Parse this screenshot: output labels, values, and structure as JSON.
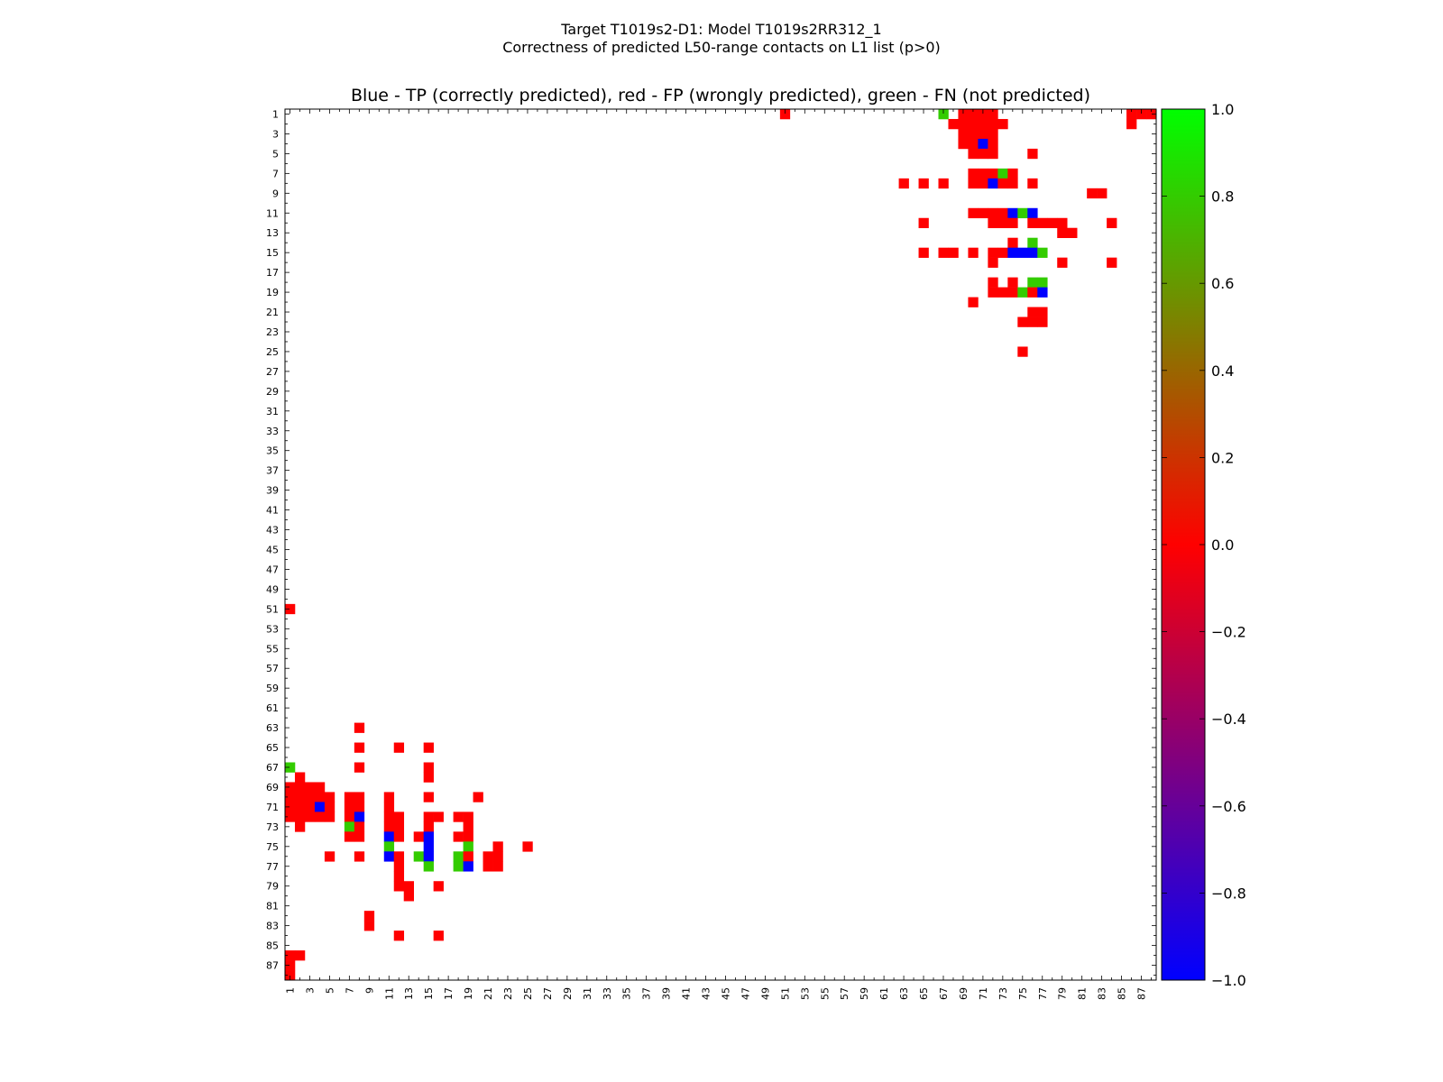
{
  "figure": {
    "suptitle_line1": "Target T1019s2-D1: Model T1019s2RR312_1",
    "suptitle_line2": "Correctness of predicted L50-range contacts on L1 list (p>0)"
  },
  "chart_data": {
    "type": "heatmap",
    "title": "Blue - TP (correctly predicted), red - FP (wrongly predicted), green - FN (not predicted)",
    "xlabel": "",
    "ylabel": "",
    "n_residues": 88,
    "x_ticks": [
      1,
      3,
      5,
      7,
      9,
      11,
      13,
      15,
      17,
      19,
      21,
      23,
      25,
      27,
      29,
      31,
      33,
      35,
      37,
      39,
      41,
      43,
      45,
      47,
      49,
      51,
      53,
      55,
      57,
      59,
      61,
      63,
      65,
      67,
      69,
      71,
      73,
      75,
      77,
      79,
      81,
      83,
      85,
      87
    ],
    "y_ticks": [
      1,
      3,
      5,
      7,
      9,
      11,
      13,
      15,
      17,
      19,
      21,
      23,
      25,
      27,
      29,
      31,
      33,
      35,
      37,
      39,
      41,
      43,
      45,
      47,
      49,
      51,
      53,
      55,
      57,
      59,
      61,
      63,
      65,
      67,
      69,
      71,
      73,
      75,
      77,
      79,
      81,
      83,
      85,
      87
    ],
    "colorbar": {
      "range": [
        -1.0,
        1.0
      ],
      "tick_labels": [
        "1.0",
        "0.8",
        "0.6",
        "0.4",
        "0.2",
        "0.0",
        "−0.2",
        "−0.4",
        "−0.6",
        "−0.8",
        "−1.0"
      ],
      "tick_values": [
        1.0,
        0.8,
        0.6,
        0.4,
        0.2,
        0.0,
        -0.2,
        -0.4,
        -0.6,
        -0.8,
        -1.0
      ],
      "stops": [
        {
          "value": -1.0,
          "color": "#0000ff"
        },
        {
          "value": 0.0,
          "color": "#ff0000"
        },
        {
          "value": 1.0,
          "color": "#00ff00"
        }
      ]
    },
    "legend": {
      "tp_value": -1,
      "fp_value": 0,
      "fn_value": 1,
      "tp_color": "#0000ff",
      "fp_color": "#ff0000",
      "fn_color": "#33cc00"
    },
    "cells_note": "Each cell is [residue_i, residue_j, value]; upper triangle shown, lower triangle is the symmetric mirror.",
    "cells": [
      [
        1,
        51,
        0
      ],
      [
        1,
        67,
        1
      ],
      [
        1,
        69,
        0
      ],
      [
        1,
        70,
        0
      ],
      [
        1,
        71,
        0
      ],
      [
        1,
        72,
        0
      ],
      [
        1,
        86,
        0
      ],
      [
        1,
        87,
        0
      ],
      [
        1,
        88,
        0
      ],
      [
        2,
        68,
        0
      ],
      [
        2,
        69,
        0
      ],
      [
        2,
        70,
        0
      ],
      [
        2,
        71,
        0
      ],
      [
        2,
        72,
        0
      ],
      [
        2,
        73,
        0
      ],
      [
        2,
        86,
        0
      ],
      [
        3,
        69,
        0
      ],
      [
        3,
        70,
        0
      ],
      [
        3,
        71,
        0
      ],
      [
        3,
        72,
        0
      ],
      [
        4,
        69,
        0
      ],
      [
        4,
        70,
        0
      ],
      [
        4,
        71,
        -1
      ],
      [
        4,
        72,
        0
      ],
      [
        5,
        70,
        0
      ],
      [
        5,
        71,
        0
      ],
      [
        5,
        72,
        0
      ],
      [
        5,
        76,
        0
      ],
      [
        7,
        70,
        0
      ],
      [
        7,
        71,
        0
      ],
      [
        7,
        72,
        0
      ],
      [
        7,
        73,
        1
      ],
      [
        7,
        74,
        0
      ],
      [
        8,
        70,
        0
      ],
      [
        8,
        71,
        0
      ],
      [
        8,
        72,
        -1
      ],
      [
        8,
        73,
        0
      ],
      [
        8,
        74,
        0
      ],
      [
        8,
        76,
        0
      ],
      [
        8,
        63,
        0
      ],
      [
        8,
        65,
        0
      ],
      [
        8,
        67,
        0
      ],
      [
        9,
        82,
        0
      ],
      [
        9,
        83,
        0
      ],
      [
        11,
        70,
        0
      ],
      [
        11,
        71,
        0
      ],
      [
        11,
        72,
        0
      ],
      [
        11,
        73,
        0
      ],
      [
        11,
        74,
        -1
      ],
      [
        11,
        75,
        1
      ],
      [
        11,
        76,
        -1
      ],
      [
        12,
        65,
        0
      ],
      [
        12,
        72,
        0
      ],
      [
        12,
        73,
        0
      ],
      [
        12,
        74,
        0
      ],
      [
        12,
        76,
        0
      ],
      [
        12,
        77,
        0
      ],
      [
        12,
        78,
        0
      ],
      [
        12,
        79,
        0
      ],
      [
        12,
        84,
        0
      ],
      [
        13,
        79,
        0
      ],
      [
        13,
        80,
        0
      ],
      [
        14,
        74,
        0
      ],
      [
        14,
        76,
        1
      ],
      [
        15,
        65,
        0
      ],
      [
        15,
        67,
        0
      ],
      [
        15,
        68,
        0
      ],
      [
        15,
        70,
        0
      ],
      [
        15,
        72,
        0
      ],
      [
        15,
        73,
        0
      ],
      [
        15,
        74,
        -1
      ],
      [
        15,
        75,
        -1
      ],
      [
        15,
        76,
        -1
      ],
      [
        15,
        77,
        1
      ],
      [
        16,
        72,
        0
      ],
      [
        16,
        79,
        0
      ],
      [
        16,
        84,
        0
      ],
      [
        18,
        72,
        0
      ],
      [
        18,
        74,
        0
      ],
      [
        18,
        76,
        1
      ],
      [
        18,
        77,
        1
      ],
      [
        19,
        72,
        0
      ],
      [
        19,
        73,
        0
      ],
      [
        19,
        74,
        0
      ],
      [
        19,
        75,
        1
      ],
      [
        19,
        76,
        0
      ],
      [
        19,
        77,
        -1
      ],
      [
        20,
        70,
        0
      ],
      [
        21,
        76,
        0
      ],
      [
        21,
        77,
        0
      ],
      [
        22,
        75,
        0
      ],
      [
        22,
        76,
        0
      ],
      [
        22,
        77,
        0
      ],
      [
        25,
        75,
        0
      ]
    ]
  }
}
